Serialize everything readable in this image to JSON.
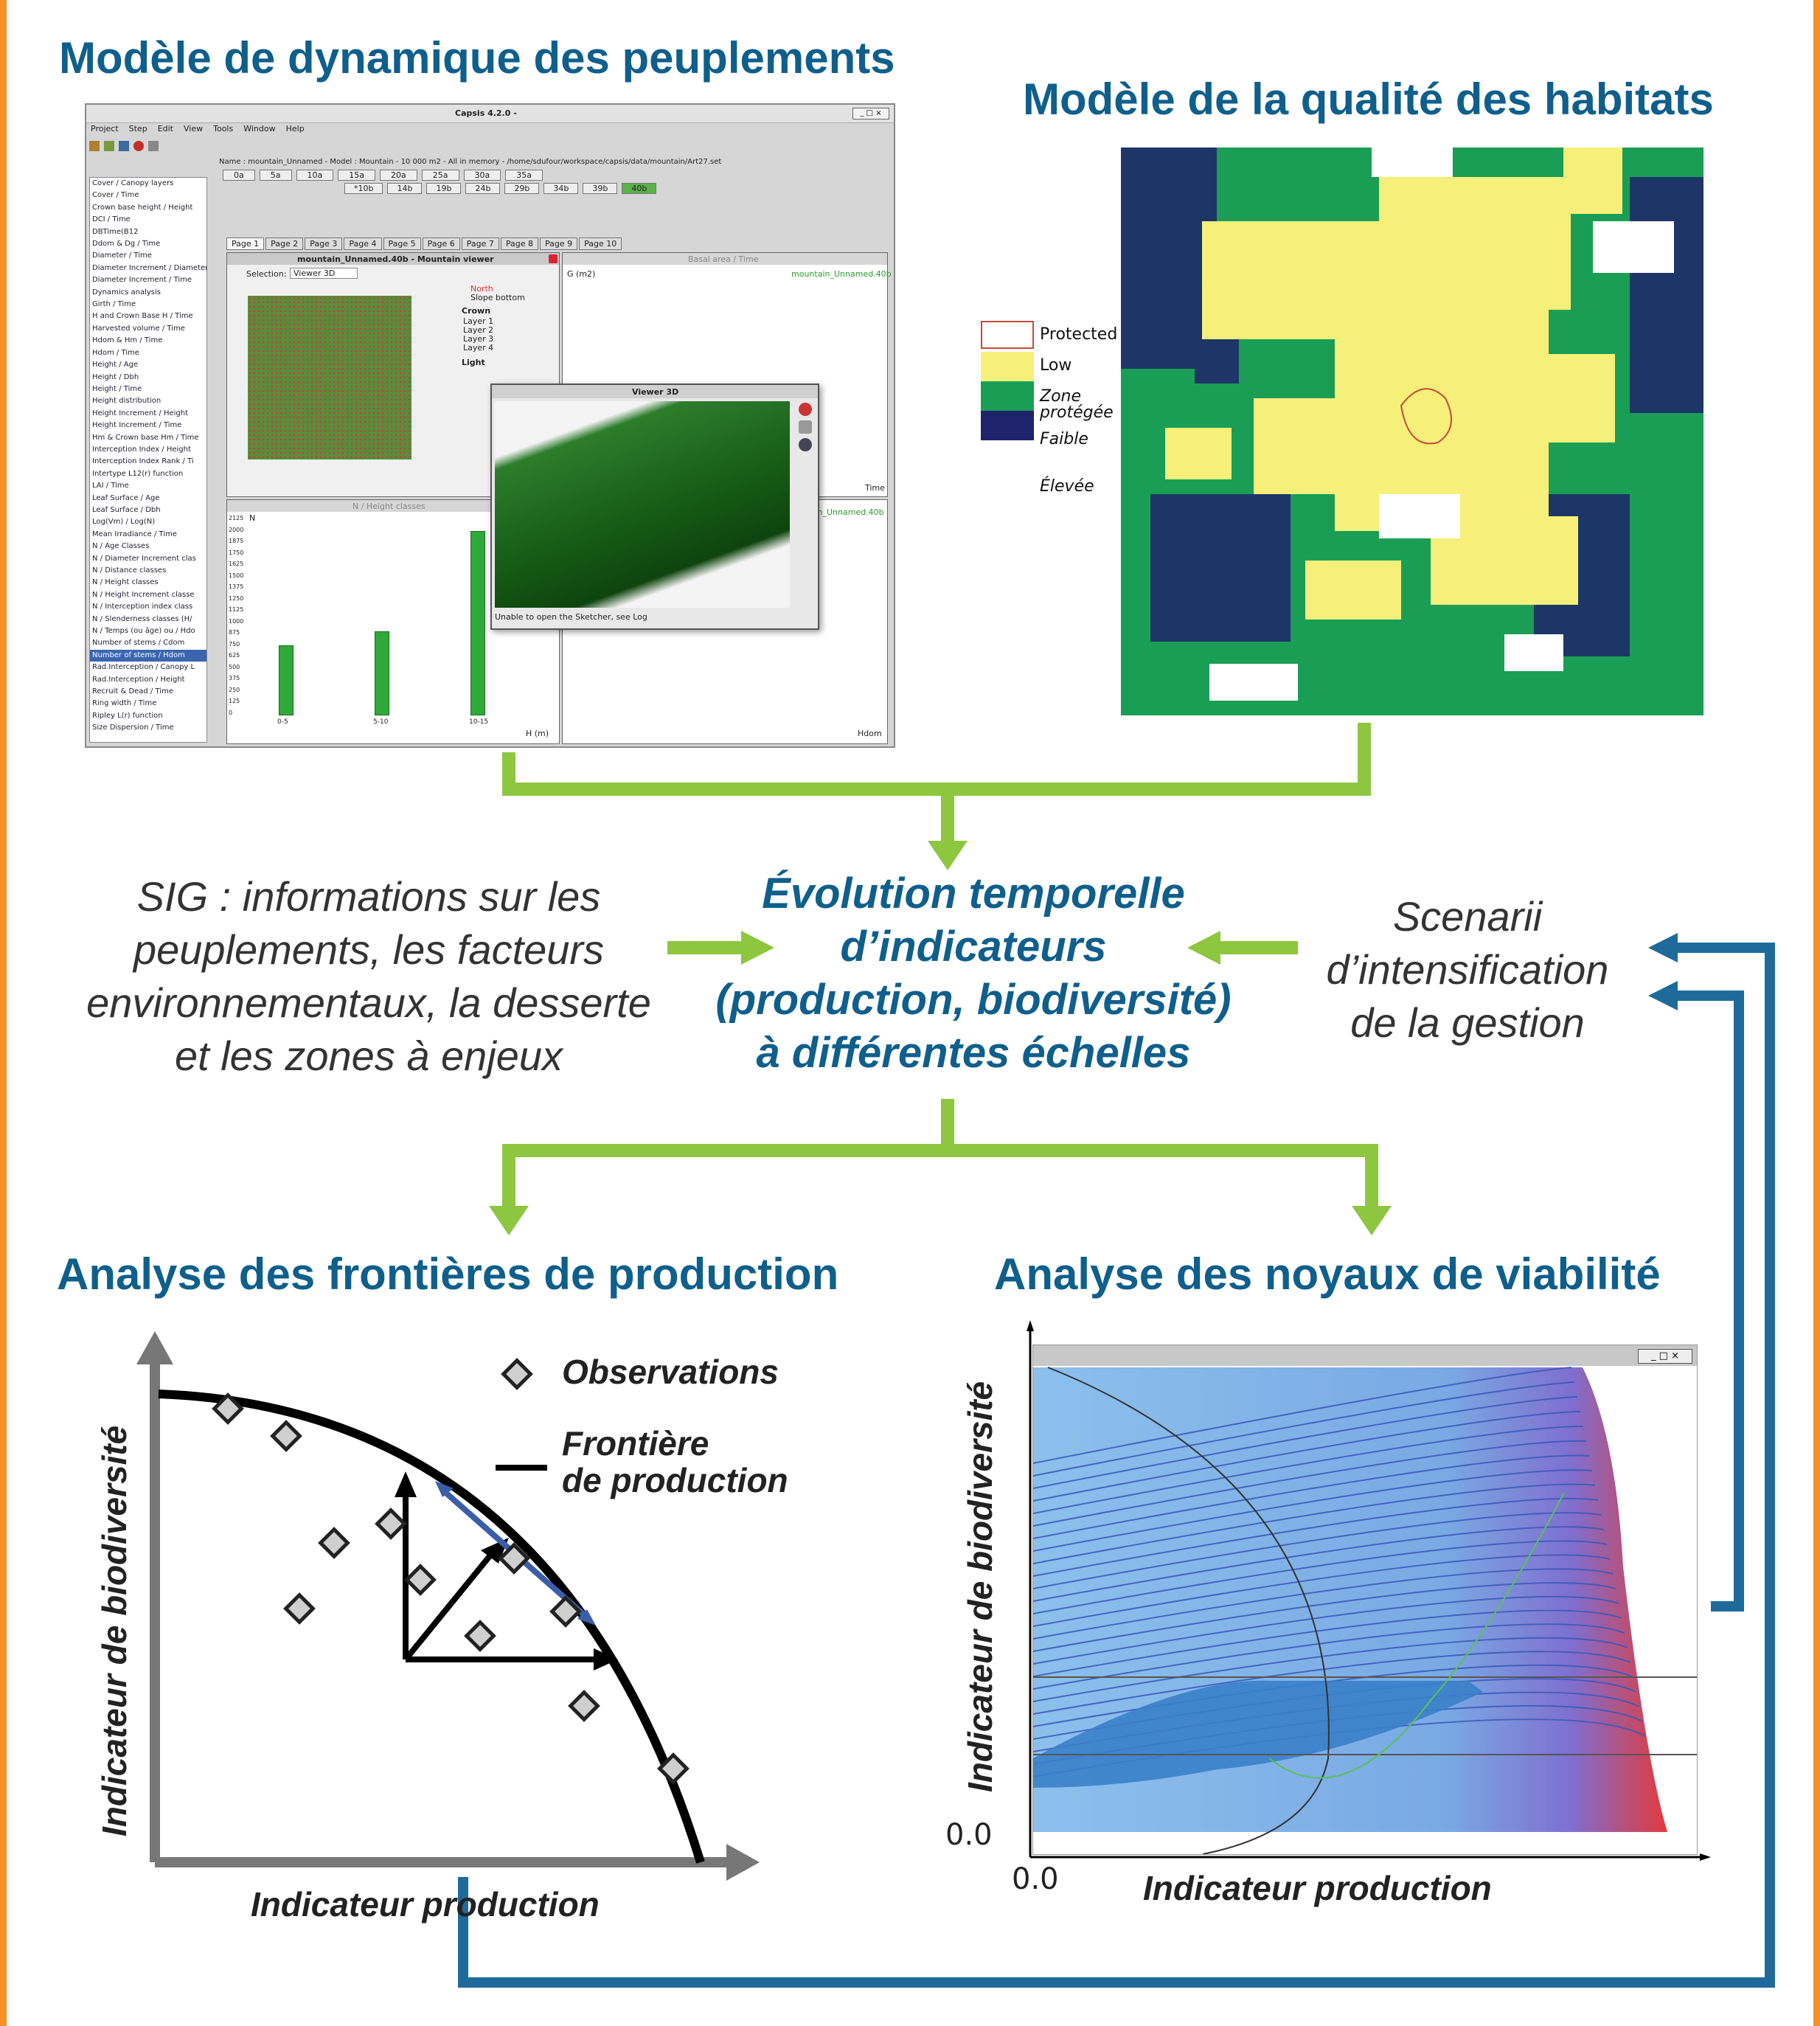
{
  "colors": {
    "frame_orange": "#f29222",
    "title_blue": "#0f5f8c",
    "arrow_green": "#8dc63f",
    "feedback_blue": "#1e6b9b",
    "habitat_yellow": "#f6f07a",
    "habitat_green": "#1a9e55",
    "habitat_navy": "#1f236b"
  },
  "titles": {
    "stand_model": "Modèle de dynamique des peuplements",
    "habitat_model": "Modèle de la qualité des habitats",
    "frontier_analysis": "Analyse des frontières de production",
    "viability_analysis": "Analyse des noyaux de viabilité"
  },
  "center": {
    "line1": "Évolution temporelle",
    "line2": "d’indicateurs",
    "line3": "(production, biodiversité)",
    "line4": "à différentes échelles"
  },
  "left_text": {
    "line1": "SIG : informations sur les",
    "line2": "peuplements, les facteurs",
    "line3": "environnementaux, la desserte",
    "line4": "et les zones à enjeux"
  },
  "right_text": {
    "line1": "Scenarii",
    "line2": "d’intensification",
    "line3": "de la gestion"
  },
  "habitat_legend": {
    "protected": "Protected",
    "low": "Low",
    "zone_protegee_1": "Zone",
    "zone_protegee_2": "protégée",
    "faible": "Faible",
    "elevee": "Élevée"
  },
  "capsis": {
    "window_title": "Capsis 4.2.0 -",
    "menu": [
      "Project",
      "Step",
      "Edit",
      "View",
      "Tools",
      "Window",
      "Help"
    ],
    "status": "Name : mountain_Unnamed - Model : Mountain - 10 000 m2 - All in memory - /home/sdufour/workspace/capsis/data/mountain/Art27.set",
    "steps_row1": [
      "0a",
      "5a",
      "10a",
      "15a",
      "20a",
      "25a",
      "30a",
      "35a"
    ],
    "steps_row2": [
      "*10b",
      "14b",
      "19b",
      "24b",
      "29b",
      "34b",
      "39b",
      "40b"
    ],
    "pages": [
      "Page 1",
      "Page 2",
      "Page 3",
      "Page 4",
      "Page 5",
      "Page 6",
      "Page 7",
      "Page 8",
      "Page 9",
      "Page 10"
    ],
    "sidebar": [
      "Cover / Canopy layers",
      "Cover / Time",
      "Crown base height / Height",
      "DCI / Time",
      "DBTime(B12",
      "Ddom & Dg / Time",
      "Diameter / Time",
      "Diameter Increment / Diameter",
      "Diameter Increment / Time",
      "Dynamics analysis",
      "Girth / Time",
      "H and Crown Base H / Time",
      "Harvested volume / Time",
      "Hdom & Hm / Time",
      "Hdom / Time",
      "Height / Age",
      "Height / Dbh",
      "Height / Time",
      "Height distribution",
      "Height Increment / Height",
      "Height Increment / Time",
      "Hm & Crown base Hm / Time",
      "Interception Index / Height",
      "Interception Index Rank / Ti",
      "Intertype L12(r) function",
      "LAI / Time",
      "Leaf Surface / Age",
      "Leaf Surface / Dbh",
      "Log(Vm) / Log(N)",
      "Mean Irradiance / Time",
      "N / Age Classes",
      "N / Diameter Increment clas",
      "N / Distance classes",
      "N / Height classes",
      "N / Height Increment classe",
      "N / Interception index class",
      "N / Slenderness classes (H/",
      "N / Temps (ou âge) ou / Hdo",
      "Number of stems / Cdom",
      "Number of stems / Hdom",
      "Rad.Interception / Canopy L",
      "Rad.Interception / Height",
      "Recruit & Dead / Time",
      "Ring width / Time",
      "Ripley L(r) function",
      "Size Dispersion / Time"
    ],
    "viewer_title": "mountain_Unnamed.40b - Mountain viewer",
    "viewer3d_title": "Viewer 3D",
    "basal_title": "Basal area / Time",
    "nheight_title": "N / Height classes",
    "selection_label": "Selection:",
    "selection_value": "Viewer 3D",
    "north": "North",
    "slope": "Slope bottom",
    "crown": "Crown",
    "layers": [
      "Layer 1",
      "Layer 2",
      "Layer 3",
      "Layer 4"
    ],
    "light": "Light",
    "sketcher_msg": "Unable to open the Sketcher, see Log",
    "hbar_xlabel": "H (m)",
    "hbar_ylabel": "N",
    "hbar_cats": [
      "0-5",
      "5-10",
      "10-15"
    ],
    "hbar_values": [
      750,
      900,
      2000
    ],
    "hbar_yticks": [
      "2125",
      "2000",
      "1875",
      "1750",
      "1625",
      "1500",
      "1375",
      "1250",
      "1125",
      "1000",
      "875",
      "750",
      "625",
      "500",
      "375",
      "250",
      "125",
      "0"
    ],
    "basal_ylabel": "G (m2)",
    "basal_xlabel": "Time",
    "legend_series": "mountain_Unnamed.40b",
    "hdom_xlabel": "Hdom"
  },
  "frontier": {
    "legend_observations": "Observations",
    "legend_frontier_1": "Frontière",
    "legend_frontier_2": "de production",
    "x_label": "Indicateur production",
    "y_label": "Indicateur de biodiversité"
  },
  "viability": {
    "x_label": "Indicateur production",
    "y_label": "Indicateur de biodiversité",
    "x_zero": "0.0",
    "y_zero": "0.0"
  }
}
